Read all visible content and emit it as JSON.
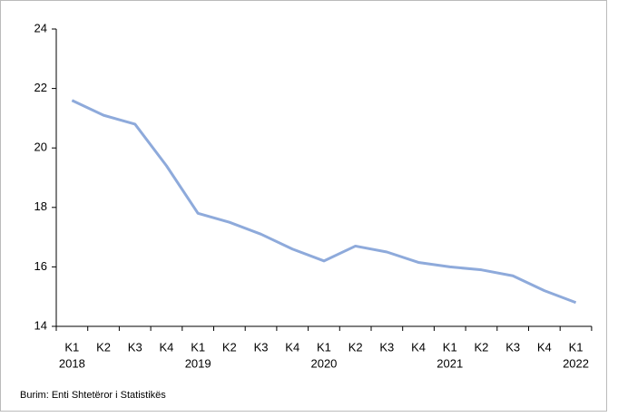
{
  "chart_data": {
    "type": "line",
    "categories": [
      "K1",
      "K2",
      "K3",
      "K4",
      "K1",
      "K2",
      "K3",
      "K4",
      "K1",
      "K2",
      "K3",
      "K4",
      "K1",
      "K2",
      "K3",
      "K4",
      "K1"
    ],
    "years": [
      "2018",
      "2019",
      "2020",
      "2021",
      "2022"
    ],
    "series": [
      {
        "color": "#8eaadb",
        "values": [
          21.6,
          21.1,
          20.8,
          19.4,
          17.8,
          17.5,
          17.1,
          16.6,
          16.2,
          16.7,
          16.5,
          16.15,
          16.0,
          15.9,
          15.7,
          15.2,
          14.8
        ]
      }
    ],
    "ylim": [
      14,
      24
    ],
    "yticks": [
      14,
      16,
      18,
      20,
      22,
      24
    ],
    "source": "Burim: Enti Shtetëror i Statistikës"
  }
}
